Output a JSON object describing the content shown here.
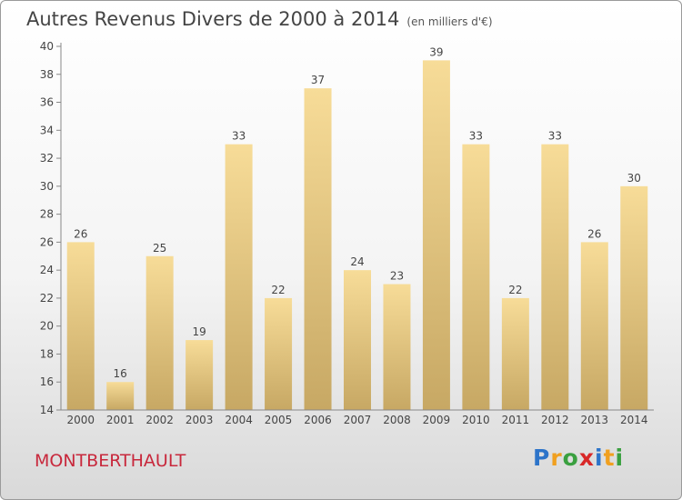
{
  "header": {
    "title": "Autres Revenus Divers de 2000 à 2014",
    "unit": "(en milliers d'€)"
  },
  "location": "MONTBERTHAULT",
  "brand": {
    "letters": [
      "P",
      "r",
      "o",
      "x",
      "i",
      "t",
      "i"
    ],
    "colors": [
      "#2d74c9",
      "#f0a020",
      "#3aa040",
      "#d82828",
      "#2d74c9",
      "#f0a020",
      "#3aa040"
    ]
  },
  "chart_data": {
    "type": "bar",
    "categories": [
      "2000",
      "2001",
      "2002",
      "2003",
      "2004",
      "2005",
      "2006",
      "2007",
      "2008",
      "2009",
      "2010",
      "2011",
      "2012",
      "2013",
      "2014"
    ],
    "values": [
      26,
      16,
      25,
      19,
      33,
      22,
      37,
      24,
      23,
      39,
      33,
      22,
      33,
      26,
      30
    ],
    "title": "Autres Revenus Divers de 2000 à 2014",
    "ylim": [
      14,
      40
    ],
    "yticks": [
      14,
      16,
      18,
      20,
      22,
      24,
      26,
      28,
      30,
      32,
      34,
      36,
      38,
      40
    ],
    "grid": false,
    "bar_color_top": "#f7dc98",
    "bar_color_bottom": "#c7a864"
  }
}
